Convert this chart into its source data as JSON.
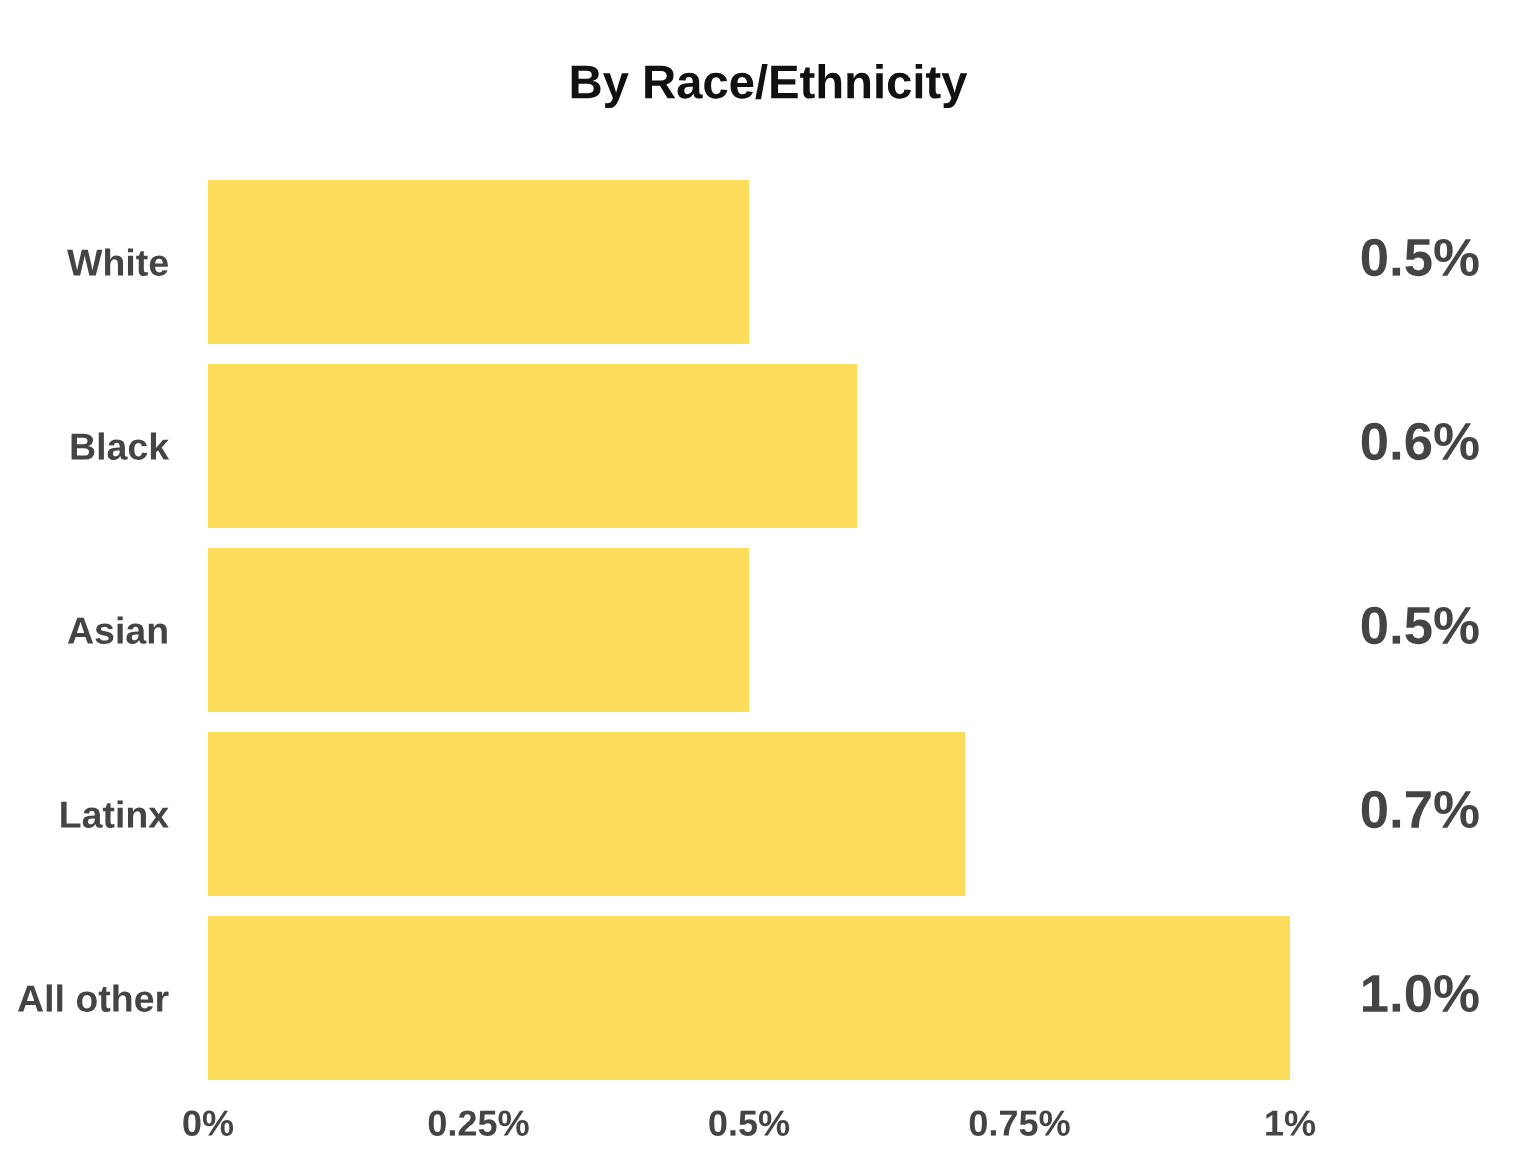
{
  "chart_data": {
    "type": "bar",
    "orientation": "horizontal",
    "title": "By Race/Ethnicity",
    "categories": [
      "White",
      "Black",
      "Asian",
      "Latinx",
      "All other"
    ],
    "values": [
      0.5,
      0.6,
      0.5,
      0.7,
      1.0
    ],
    "color": "#fddc5c",
    "value_labels": [
      "0.5%",
      "0.6%",
      "0.5%",
      "0.7%",
      "1.0%"
    ],
    "xlim": [
      0,
      1
    ],
    "xticks": [
      {
        "value": 0,
        "label": "0%"
      },
      {
        "value": 0.25,
        "label": "0.25%"
      },
      {
        "value": 0.5,
        "label": "0.5%"
      },
      {
        "value": 0.75,
        "label": "0.75%"
      },
      {
        "value": 1,
        "label": "1%"
      }
    ]
  }
}
